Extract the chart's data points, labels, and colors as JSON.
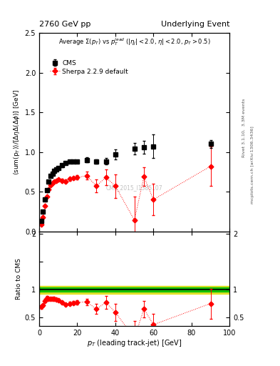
{
  "title_left": "2760 GeV pp",
  "title_right": "Underlying Event",
  "ylabel_main": "⟨sum(p_{T})⟩/[ΔηΔ(Δφ)] [GeV]",
  "ylabel_ratio": "Ratio to CMS",
  "xlabel": "p_{T} (leading track-jet) [GeV]",
  "right_label": "Rivet 3.1.10,  3.3M events",
  "right_label2": "mcplots.cern.ch [arXiv:1306.3436]",
  "watermark": "CMS_2015_I1385107",
  "ylim_main": [
    0,
    2.5
  ],
  "ylim_ratio": [
    0.35,
    2.05
  ],
  "xlim": [
    0,
    100
  ],
  "cms_x": [
    1.0,
    2.0,
    3.0,
    4.0,
    5.0,
    6.0,
    7.0,
    8.0,
    9.0,
    10.0,
    12.0,
    14.0,
    16.0,
    18.0,
    20.0,
    25.0,
    30.0,
    35.0,
    40.0,
    50.0,
    55.0,
    60.0,
    90.0
  ],
  "cms_y": [
    0.13,
    0.25,
    0.4,
    0.52,
    0.63,
    0.7,
    0.73,
    0.76,
    0.78,
    0.8,
    0.83,
    0.86,
    0.88,
    0.88,
    0.88,
    0.9,
    0.88,
    0.88,
    0.97,
    1.04,
    1.06,
    1.07,
    1.1
  ],
  "cms_yerr": [
    0.01,
    0.01,
    0.01,
    0.01,
    0.01,
    0.01,
    0.01,
    0.01,
    0.01,
    0.01,
    0.02,
    0.02,
    0.02,
    0.02,
    0.02,
    0.03,
    0.03,
    0.04,
    0.06,
    0.07,
    0.08,
    0.15,
    0.05
  ],
  "mc_x": [
    1.0,
    2.0,
    3.0,
    4.0,
    5.0,
    6.0,
    7.0,
    8.0,
    9.0,
    10.0,
    12.0,
    14.0,
    16.0,
    18.0,
    20.0,
    25.0,
    30.0,
    35.0,
    40.0,
    50.0,
    55.0,
    60.0,
    90.0
  ],
  "mc_y": [
    0.09,
    0.18,
    0.32,
    0.44,
    0.53,
    0.58,
    0.61,
    0.63,
    0.64,
    0.65,
    0.64,
    0.63,
    0.66,
    0.67,
    0.68,
    0.7,
    0.57,
    0.68,
    0.57,
    0.14,
    0.69,
    0.4,
    0.82
  ],
  "mc_yerr": [
    0.01,
    0.01,
    0.01,
    0.01,
    0.01,
    0.01,
    0.01,
    0.01,
    0.01,
    0.01,
    0.02,
    0.02,
    0.02,
    0.02,
    0.03,
    0.05,
    0.08,
    0.1,
    0.15,
    0.3,
    0.12,
    0.2,
    0.25
  ],
  "ratio_y": [
    0.69,
    0.72,
    0.8,
    0.85,
    0.84,
    0.83,
    0.84,
    0.83,
    0.82,
    0.81,
    0.77,
    0.73,
    0.75,
    0.76,
    0.77,
    0.78,
    0.65,
    0.77,
    0.59,
    0.13,
    0.65,
    0.37,
    0.75
  ],
  "ratio_yerr": [
    0.03,
    0.03,
    0.03,
    0.03,
    0.02,
    0.02,
    0.02,
    0.02,
    0.02,
    0.02,
    0.03,
    0.03,
    0.03,
    0.03,
    0.04,
    0.06,
    0.09,
    0.12,
    0.16,
    0.3,
    0.15,
    0.2,
    0.27
  ],
  "band_inner_color": "#00bb00",
  "band_outer_color": "#dddd00",
  "cms_color": "#000000",
  "mc_color": "#ff0000",
  "cms_marker": "s",
  "mc_marker": "D",
  "cms_markersize": 4,
  "mc_markersize": 3.5
}
